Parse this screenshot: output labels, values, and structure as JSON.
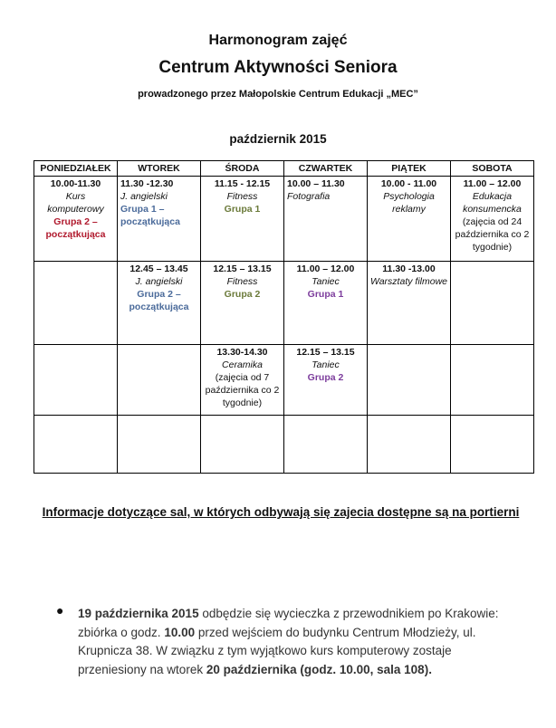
{
  "header": {
    "title": "Harmonogram zajęć",
    "subtitle": "Centrum Aktywności Seniora",
    "org": "prowadzonego przez Małopolskie Centrum Edukacji „MEC”",
    "month": "październik 2015"
  },
  "days": [
    "PONIEDZIAŁEK",
    "WTOREK",
    "ŚRODA",
    "CZWARTEK",
    "PIĄTEK",
    "SOBOTA"
  ],
  "cells": {
    "mon1": {
      "time": "10.00-11.30",
      "title": "Kurs komputerowy",
      "group": "Grupa 2 – początkująca"
    },
    "tue1": {
      "time": "11.30 -12.30",
      "title": "J. angielski",
      "group": "Grupa 1 – początkująca"
    },
    "wed1": {
      "time": "11.15 - 12.15",
      "title": "Fitness",
      "group": "Grupa 1"
    },
    "thu1": {
      "time": "10.00 – 11.30",
      "title": "Fotografia"
    },
    "fri1": {
      "time": "10.00 - 11.00",
      "title": "Psychologia reklamy"
    },
    "sat1": {
      "time": "11.00 – 12.00",
      "title": "Edukacja konsumencka",
      "note": "(zajęcia od 24 października co 2 tygodnie)"
    },
    "tue2": {
      "time": "12.45 – 13.45",
      "title": "J. angielski",
      "group": "Grupa 2 – początkująca"
    },
    "wed2": {
      "time": "12.15 – 13.15",
      "title": "Fitness",
      "group": "Grupa 2"
    },
    "thu2": {
      "time": "11.00 – 12.00",
      "title": "Taniec",
      "group": "Grupa 1"
    },
    "fri2": {
      "time": "11.30 -13.00",
      "title": "Warsztaty filmowe"
    },
    "wed3": {
      "time": "13.30-14.30",
      "title": "Ceramika",
      "note": "(zajęcia od 7 października co 2 tygodnie)"
    },
    "thu3": {
      "time": "12.15 – 13.15",
      "title": "Taniec",
      "group": "Grupa 2"
    }
  },
  "colors": {
    "red": "#b0182c",
    "blue": "#4a6a9a",
    "olive": "#6b7a3a",
    "purple": "#7c3c9c"
  },
  "info": "Informacje dotyczące sal, w których odbywają się zajecia dostępne są na portierni",
  "notice": {
    "p1": "19 października 2015",
    "p2": " odbędzie się wycieczka z przewodnikiem po Krakowie: zbiórka o godz. ",
    "p3": "10.00",
    "p4": " przed wejściem do budynku Centrum Młodzieży, ul. Krupnicza 38.  W związku z tym wyjątkowo kurs komputerowy zostaje przeniesiony na wtorek ",
    "p5": "20 października (godz. 10.00, sala 108)."
  }
}
